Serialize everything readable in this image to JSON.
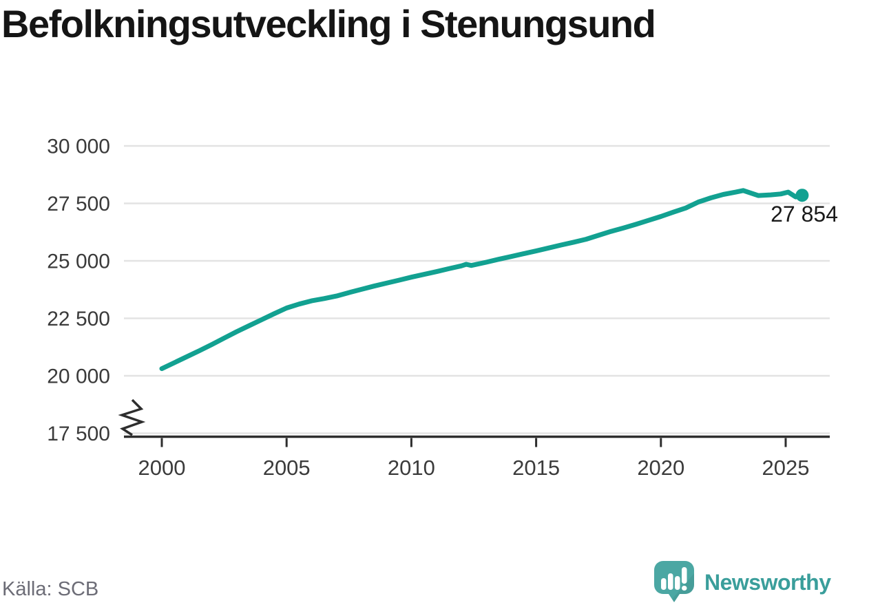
{
  "title": "Befolkningsutveckling i Stenungsund",
  "source": "Källa: SCB",
  "branding": {
    "wordmark": "Newsworthy",
    "logo_icon": "newsworthy-speech-bubble-bar-chart-icon",
    "wordmark_color": "#3a9e9b",
    "bubble_color": "#4ba7a3"
  },
  "chart_data": {
    "type": "line",
    "title": "Befolkningsutveckling i Stenungsund",
    "xlabel": "",
    "ylabel": "",
    "grid": "horizontal",
    "legend": "none",
    "axis_break_bottom": true,
    "line_color": "#12a191",
    "grid_color": "#e3e3e3",
    "axis_color": "#2e2e2e",
    "tick_label_color": "#3b3b3b",
    "xlim": [
      1998.45,
      2026.8
    ],
    "ylim": [
      17500,
      30000
    ],
    "x_ticks": [
      {
        "value": 2000,
        "label": "2000"
      },
      {
        "value": 2005,
        "label": "2005"
      },
      {
        "value": 2010,
        "label": "2010"
      },
      {
        "value": 2015,
        "label": "2015"
      },
      {
        "value": 2020,
        "label": "2020"
      },
      {
        "value": 2025,
        "label": "2025"
      }
    ],
    "y_ticks": [
      {
        "value": 30000,
        "label": "30 000"
      },
      {
        "value": 27500,
        "label": "27 500"
      },
      {
        "value": 25000,
        "label": "25 000"
      },
      {
        "value": 22500,
        "label": "22 500"
      },
      {
        "value": 20000,
        "label": "20 000"
      },
      {
        "value": 17500,
        "label": "17 500"
      }
    ],
    "series": [
      {
        "points": [
          [
            2000.0,
            20310
          ],
          [
            2000.5,
            20570
          ],
          [
            2001.0,
            20830
          ],
          [
            2001.5,
            21090
          ],
          [
            2002.0,
            21360
          ],
          [
            2002.5,
            21640
          ],
          [
            2003.0,
            21920
          ],
          [
            2003.5,
            22180
          ],
          [
            2004.0,
            22440
          ],
          [
            2004.5,
            22700
          ],
          [
            2005.0,
            22950
          ],
          [
            2005.5,
            23120
          ],
          [
            2006.0,
            23260
          ],
          [
            2006.5,
            23360
          ],
          [
            2007.0,
            23470
          ],
          [
            2007.5,
            23620
          ],
          [
            2008.0,
            23760
          ],
          [
            2008.5,
            23900
          ],
          [
            2009.0,
            24030
          ],
          [
            2009.5,
            24160
          ],
          [
            2010.0,
            24290
          ],
          [
            2010.5,
            24410
          ],
          [
            2011.0,
            24530
          ],
          [
            2011.5,
            24660
          ],
          [
            2012.0,
            24780
          ],
          [
            2012.2,
            24850
          ],
          [
            2012.4,
            24800
          ],
          [
            2013.0,
            24940
          ],
          [
            2013.5,
            25070
          ],
          [
            2014.0,
            25190
          ],
          [
            2014.5,
            25310
          ],
          [
            2015.0,
            25430
          ],
          [
            2015.5,
            25560
          ],
          [
            2016.0,
            25690
          ],
          [
            2016.5,
            25810
          ],
          [
            2017.0,
            25940
          ],
          [
            2017.5,
            26110
          ],
          [
            2018.0,
            26280
          ],
          [
            2018.5,
            26430
          ],
          [
            2019.0,
            26590
          ],
          [
            2019.5,
            26760
          ],
          [
            2020.0,
            26930
          ],
          [
            2020.5,
            27120
          ],
          [
            2021.0,
            27300
          ],
          [
            2021.5,
            27560
          ],
          [
            2022.0,
            27740
          ],
          [
            2022.5,
            27890
          ],
          [
            2023.0,
            27990
          ],
          [
            2023.3,
            28060
          ],
          [
            2023.9,
            27840
          ],
          [
            2024.4,
            27870
          ],
          [
            2024.8,
            27910
          ],
          [
            2025.1,
            27990
          ],
          [
            2025.4,
            27780
          ],
          [
            2025.66,
            27854
          ]
        ]
      }
    ],
    "end_point": {
      "x": 2025.66,
      "value": 27854,
      "label": "27 854"
    }
  }
}
